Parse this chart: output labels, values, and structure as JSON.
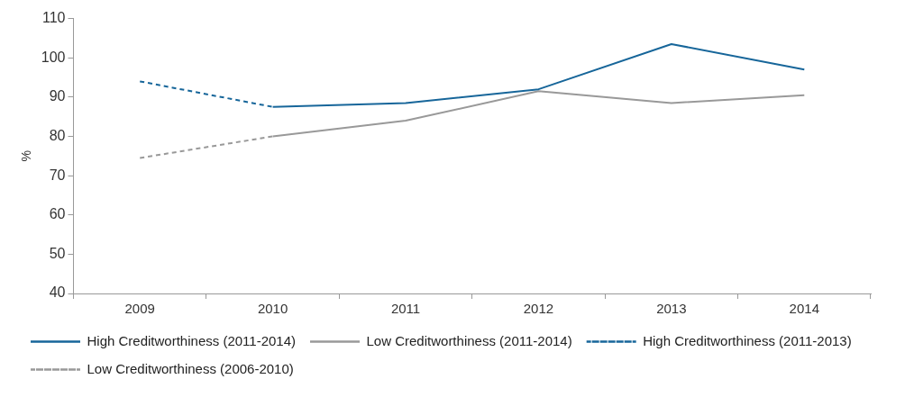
{
  "chart_data": {
    "type": "line",
    "ylabel": "%",
    "categories": [
      "2009",
      "2010",
      "2011",
      "2012",
      "2013",
      "2014"
    ],
    "ylim": [
      40,
      110
    ],
    "yticks": [
      40,
      50,
      60,
      70,
      80,
      90,
      100,
      110
    ],
    "grid": false,
    "legend": "bottom",
    "marker": "none",
    "series": [
      {
        "name": "High Creditworthiness (2011-2014)",
        "color": "#17669a",
        "line_style": "solid",
        "values": [
          null,
          87.5,
          88.5,
          92,
          103.5,
          97
        ]
      },
      {
        "name": "Low Creditworthiness (2011-2014)",
        "color": "#999999",
        "line_style": "solid",
        "values": [
          null,
          80,
          84,
          91.5,
          88.5,
          90.5
        ]
      },
      {
        "name": "High Creditworthiness (2011-2013)",
        "color": "#17669a",
        "line_style": "dashed",
        "values": [
          94,
          87.5,
          null,
          null,
          null,
          null
        ]
      },
      {
        "name": "Low Creditworthiness (2006-2010)",
        "color": "#999999",
        "line_style": "dashed",
        "values": [
          74.5,
          80,
          null,
          null,
          null,
          null
        ]
      }
    ]
  }
}
